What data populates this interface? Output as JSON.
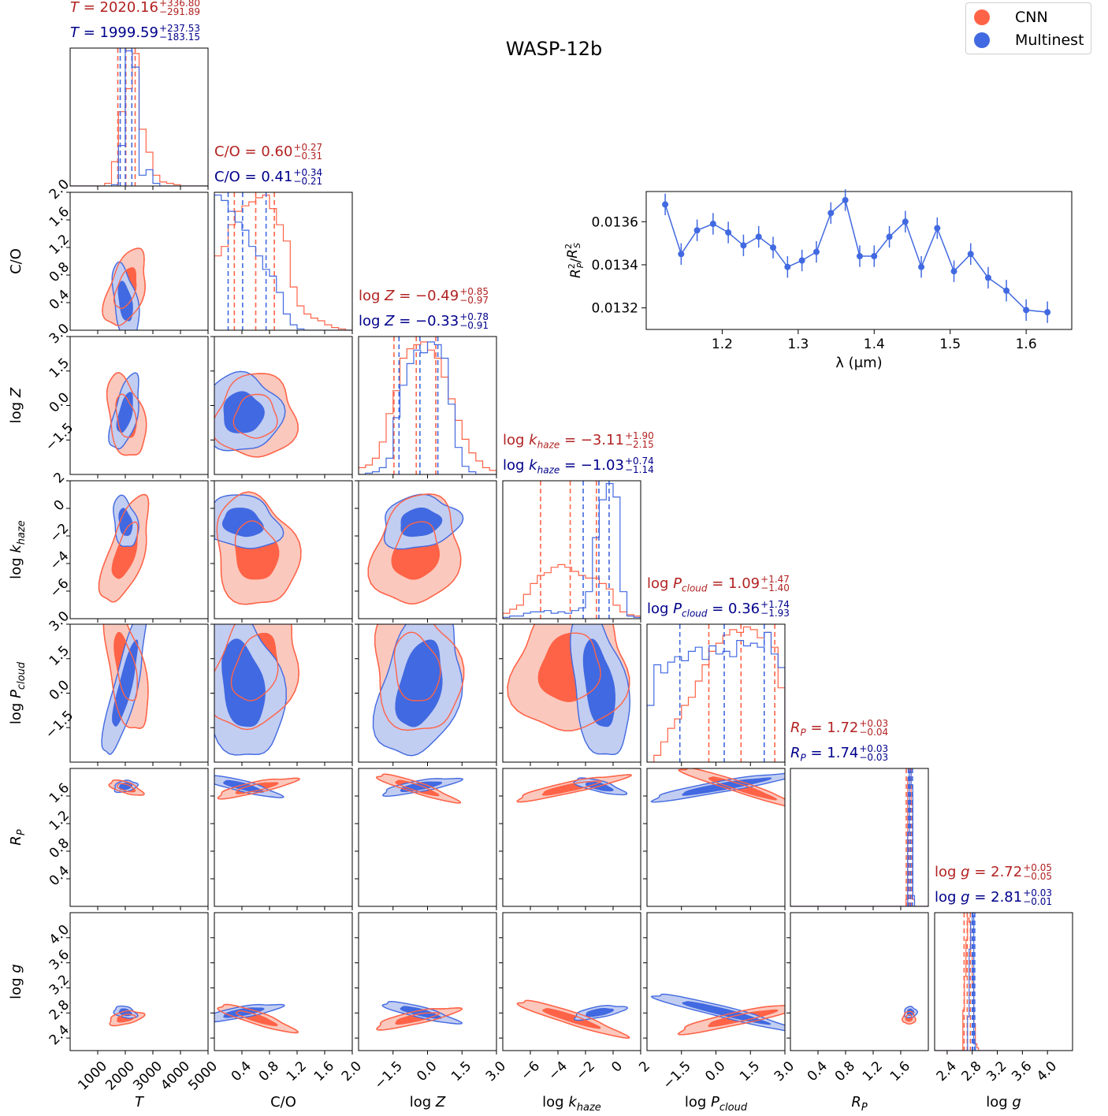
{
  "title": "WASP-12b",
  "legend": [
    {
      "label": "CNN",
      "color": "#ff6347"
    },
    {
      "label": "Multinest",
      "color": "#4169e1"
    }
  ],
  "colors": {
    "cnn": "#ff6347",
    "cnn_light": "#fbc8bd",
    "multinest": "#4169e1",
    "multinest_light": "#c2cdf2",
    "cnn_text": "#b22222",
    "multinest_text": "#00008b"
  },
  "chart_data": [
    {
      "type": "corner",
      "parameters": [
        {
          "label": "T",
          "range": [
            0,
            5000
          ],
          "ticks": [
            "1000",
            "2000",
            "3000",
            "4000",
            "5000"
          ],
          "tick_values": [
            1000,
            2000,
            3000,
            4000,
            5000
          ]
        },
        {
          "label": "C/O",
          "range": [
            0,
            2.0
          ],
          "ticks": [
            "0.4",
            "0.8",
            "1.2",
            "1.6",
            "2.0"
          ],
          "tick_values": [
            0.4,
            0.8,
            1.2,
            1.6,
            2.0
          ]
        },
        {
          "label": "log Z",
          "range": [
            -3,
            3
          ],
          "ticks": [
            "−1.5",
            "0.0",
            "1.5",
            "3.0"
          ],
          "tick_values": [
            -1.5,
            0,
            1.5,
            3.0
          ]
        },
        {
          "label": "log k_haze",
          "range": [
            -8,
            2
          ],
          "ticks": [
            "−6",
            "−4",
            "−2",
            "0",
            "2"
          ],
          "tick_values": [
            -6,
            -4,
            -2,
            0,
            2
          ]
        },
        {
          "label": "log P_cloud",
          "range": [
            -3,
            3
          ],
          "ticks": [
            "−1.5",
            "0.0",
            "1.5",
            "3.0"
          ],
          "tick_values": [
            -1.5,
            0,
            1.5,
            3.0
          ]
        },
        {
          "label": "R_P",
          "range": [
            0,
            2.0
          ],
          "ticks": [
            "0.4",
            "0.8",
            "1.2",
            "1.6"
          ],
          "tick_values": [
            0.4,
            0.8,
            1.2,
            1.6
          ]
        },
        {
          "label": "log g",
          "range": [
            2.2,
            4.4
          ],
          "ticks": [
            "2.4",
            "2.8",
            "3.2",
            "3.6",
            "4.0"
          ],
          "tick_values": [
            2.4,
            2.8,
            3.2,
            3.6,
            4.0
          ]
        }
      ],
      "stats": [
        {
          "param": "T",
          "cnn": {
            "sym": "T",
            "val": "2020.16",
            "up": "+336.80",
            "lo": "−291.89"
          },
          "multinest": {
            "sym": "T",
            "val": "1999.59",
            "up": "+237.53",
            "lo": "−183.15"
          }
        },
        {
          "param": "C/O",
          "cnn": {
            "sym": "C/O",
            "val": "0.60",
            "up": "+0.27",
            "lo": "−0.31"
          },
          "multinest": {
            "sym": "C/O",
            "val": "0.41",
            "up": "+0.34",
            "lo": "−0.21"
          }
        },
        {
          "param": "log Z",
          "cnn": {
            "sym": "log Z",
            "val": "−0.49",
            "up": "+0.85",
            "lo": "−0.97"
          },
          "multinest": {
            "sym": "log Z",
            "val": "−0.33",
            "up": "+0.78",
            "lo": "−0.91"
          }
        },
        {
          "param": "log k_haze",
          "cnn": {
            "sym": "log k_haze",
            "val": "−3.11",
            "up": "+1.90",
            "lo": "−2.15"
          },
          "multinest": {
            "sym": "log k_haze",
            "val": "−1.03",
            "up": "+0.74",
            "lo": "−1.14"
          }
        },
        {
          "param": "log P_cloud",
          "cnn": {
            "sym": "log P_cloud",
            "val": "1.09",
            "up": "+1.47",
            "lo": "−1.40"
          },
          "multinest": {
            "sym": "log P_cloud",
            "val": "0.36",
            "up": "+1.74",
            "lo": "−1.93"
          }
        },
        {
          "param": "R_P",
          "cnn": {
            "sym": "R_P",
            "val": "1.72",
            "up": "+0.03",
            "lo": "−0.04"
          },
          "multinest": {
            "sym": "R_P",
            "val": "1.74",
            "up": "+0.03",
            "lo": "−0.03"
          }
        },
        {
          "param": "log g",
          "cnn": {
            "sym": "log g",
            "val": "2.72",
            "up": "+0.05",
            "lo": "−0.05"
          },
          "multinest": {
            "sym": "log g",
            "val": "2.81",
            "up": "+0.03",
            "lo": "−0.01"
          }
        }
      ],
      "quantiles": {
        "cnn": [
          [
            1728,
            2020,
            2357
          ],
          [
            0.29,
            0.6,
            0.87
          ],
          [
            -1.46,
            -0.49,
            0.36
          ],
          [
            -5.26,
            -3.11,
            -1.21
          ],
          [
            -0.31,
            1.09,
            2.56
          ],
          [
            1.68,
            1.72,
            1.75
          ],
          [
            2.67,
            2.72,
            2.77
          ]
        ],
        "multinest": [
          [
            1816,
            2000,
            2237
          ],
          [
            0.2,
            0.41,
            0.75
          ],
          [
            -1.24,
            -0.33,
            0.45
          ],
          [
            -2.17,
            -1.03,
            -0.29
          ],
          [
            -1.57,
            0.36,
            2.1
          ],
          [
            1.71,
            1.74,
            1.77
          ],
          [
            2.8,
            2.81,
            2.84
          ]
        ]
      },
      "marginals": {
        "cnn": {
          "T": {
            "x0": 0,
            "dx": 250,
            "h": [
              0,
              0,
              0,
              0,
              0,
              0.02,
              0.18,
              0.55,
              0.72,
              0.98,
              0.42,
              0.25,
              0.08,
              0.03,
              0.02,
              0.01,
              0,
              0,
              0,
              0
            ]
          },
          "C/O": {
            "x0": 0,
            "dx": 0.1,
            "h": [
              0.55,
              0.62,
              0.78,
              0.88,
              0.92,
              0.95,
              0.98,
              1.0,
              0.9,
              0.78,
              0.66,
              0.32,
              0.18,
              0.12,
              0.09,
              0.07,
              0.04,
              0.02,
              0.01,
              0
            ]
          },
          "log Z": {
            "x0": -3,
            "dx": 0.3,
            "h": [
              0.05,
              0.07,
              0.12,
              0.24,
              0.45,
              0.62,
              0.86,
              0.93,
              0.96,
              0.98,
              0.92,
              0.86,
              0.72,
              0.56,
              0.4,
              0.26,
              0.16,
              0.1,
              0.05,
              0.03
            ]
          },
          "log k_haze": {
            "x0": -8,
            "dx": 0.5,
            "h": [
              0.04,
              0.07,
              0.1,
              0.18,
              0.26,
              0.32,
              0.34,
              0.38,
              0.4,
              0.38,
              0.35,
              0.32,
              0.3,
              0.3,
              0.26,
              0.22,
              0.1,
              0.05,
              0.03,
              0.02
            ]
          },
          "log P_cloud": {
            "x0": -3,
            "dx": 0.3,
            "h": [
              0,
              0.05,
              0.15,
              0.25,
              0.32,
              0.42,
              0.48,
              0.6,
              0.72,
              0.82,
              0.88,
              0.94,
              0.98,
              0.96,
              1.0,
              0.98,
              0.92,
              0.96,
              0.85,
              0.55
            ]
          },
          "R_P": {
            "x0": 0,
            "dx": 0.025,
            "h": [
              0,
              0,
              0,
              0,
              0,
              0,
              0,
              0,
              0,
              0,
              0,
              0,
              0,
              0,
              0,
              0,
              0,
              0,
              0,
              0,
              0,
              0,
              0,
              0,
              0,
              0,
              0,
              0,
              0,
              0,
              0,
              0,
              0,
              0,
              0,
              0,
              0,
              0,
              0,
              0,
              0,
              0,
              0,
              0,
              0,
              0,
              0,
              0,
              0,
              0,
              0,
              0,
              0,
              0,
              0,
              0,
              0,
              0,
              0,
              0,
              0,
              0,
              0,
              0,
              0,
              0,
              0,
              0.05,
              0.95,
              1.0,
              0.75,
              0.05,
              0,
              0,
              0,
              0,
              0,
              0,
              0,
              0
            ]
          },
          "log g": {
            "x0": 2.2,
            "dx": 0.025,
            "h": [
              0,
              0,
              0,
              0,
              0,
              0,
              0,
              0,
              0,
              0,
              0,
              0,
              0,
              0,
              0,
              0,
              0,
              0,
              0.3,
              0.55,
              0.82,
              0.98,
              0.95,
              0.7,
              0.5,
              0.2,
              0.05,
              0.02,
              0,
              0,
              0,
              0,
              0,
              0,
              0,
              0,
              0,
              0,
              0,
              0
            ]
          }
        },
        "multinest": {
          "T": {
            "x0": 0,
            "dx": 250,
            "h": [
              0,
              0,
              0,
              0,
              0,
              0,
              0.01,
              0.3,
              1.0,
              0.88,
              0.08,
              0.12,
              0.02,
              0,
              0,
              0,
              0,
              0,
              0,
              0
            ]
          },
          "C/O": {
            "x0": 0,
            "dx": 0.1,
            "h": [
              1.0,
              0.96,
              0.88,
              0.8,
              0.74,
              0.62,
              0.55,
              0.45,
              0.4,
              0.28,
              0.12,
              0.04,
              0.01,
              0,
              0,
              0,
              0,
              0,
              0,
              0
            ]
          },
          "log Z": {
            "x0": -3,
            "dx": 0.3,
            "h": [
              0,
              0.01,
              0.02,
              0.05,
              0.12,
              0.42,
              0.66,
              0.82,
              0.92,
              0.9,
              0.98,
              0.96,
              0.86,
              0.52,
              0.2,
              0.06,
              0.02,
              0,
              0,
              0
            ]
          },
          "log k_haze": {
            "x0": -8,
            "dx": 0.5,
            "h": [
              0.01,
              0.02,
              0.02,
              0.04,
              0.05,
              0.05,
              0.06,
              0.04,
              0.05,
              0.04,
              0.06,
              0.08,
              0.2,
              0.6,
              0.88,
              1.0,
              0.9,
              0.2,
              0.02,
              0.01
            ]
          },
          "log P_cloud": {
            "x0": -3,
            "dx": 0.3,
            "h": [
              0.42,
              0.72,
              0.66,
              0.74,
              0.78,
              0.75,
              0.82,
              0.85,
              0.76,
              0.86,
              0.8,
              0.82,
              0.78,
              0.9,
              0.86,
              0.88,
              0.85,
              0.96,
              0.8,
              0.7
            ]
          },
          "R_P": {
            "x0": 0,
            "dx": 0.025,
            "h": [
              0,
              0,
              0,
              0,
              0,
              0,
              0,
              0,
              0,
              0,
              0,
              0,
              0,
              0,
              0,
              0,
              0,
              0,
              0,
              0,
              0,
              0,
              0,
              0,
              0,
              0,
              0,
              0,
              0,
              0,
              0,
              0,
              0,
              0,
              0,
              0,
              0,
              0,
              0,
              0,
              0,
              0,
              0,
              0,
              0,
              0,
              0,
              0,
              0,
              0,
              0,
              0,
              0,
              0,
              0,
              0,
              0,
              0,
              0,
              0,
              0,
              0,
              0,
              0,
              0,
              0,
              0,
              0,
              0.55,
              1.0,
              0.9,
              0.08,
              0,
              0,
              0,
              0,
              0,
              0,
              0,
              0
            ]
          },
          "log g": {
            "x0": 2.2,
            "dx": 0.025,
            "h": [
              0,
              0,
              0,
              0,
              0,
              0,
              0,
              0,
              0,
              0,
              0,
              0,
              0,
              0,
              0,
              0,
              0,
              0,
              0,
              0,
              0,
              0.25,
              0.75,
              0.95,
              1.0,
              0.05,
              0,
              0,
              0,
              0,
              0,
              0,
              0,
              0,
              0,
              0,
              0,
              0,
              0,
              0
            ]
          }
        }
      }
    },
    {
      "type": "line",
      "xlabel": "λ (μm)",
      "ylabel": "R_P^2/R_S^2",
      "xlim": [
        1.1,
        1.66
      ],
      "ylim": [
        0.0131,
        0.01374
      ],
      "xticks": [
        1.2,
        1.3,
        1.4,
        1.5,
        1.6
      ],
      "yticks": [
        0.0132,
        0.0134,
        0.0136
      ],
      "series": [
        {
          "x": [
            1.125,
            1.146,
            1.167,
            1.188,
            1.208,
            1.228,
            1.248,
            1.267,
            1.286,
            1.305,
            1.324,
            1.343,
            1.362,
            1.381,
            1.4,
            1.42,
            1.441,
            1.462,
            1.483,
            1.505,
            1.527,
            1.55,
            1.574,
            1.6,
            1.628
          ],
          "y": [
            0.01368,
            0.01345,
            0.01356,
            0.01359,
            0.01355,
            0.01349,
            0.01353,
            0.01348,
            0.01339,
            0.01342,
            0.01346,
            0.01364,
            0.0137,
            0.01344,
            0.01344,
            0.01353,
            0.0136,
            0.01339,
            0.01357,
            0.01337,
            0.01345,
            0.01334,
            0.01328,
            0.01319,
            0.01318
          ],
          "err": [
            5e-05,
            5e-05,
            5e-05,
            5e-05,
            5e-05,
            5e-05,
            5e-05,
            5e-05,
            5e-05,
            5e-05,
            5e-05,
            5e-05,
            5e-05,
            5e-05,
            5e-05,
            5e-05,
            5e-05,
            5e-05,
            5e-05,
            5e-05,
            5e-05,
            5e-05,
            5e-05,
            5e-05,
            5e-05
          ]
        }
      ]
    }
  ]
}
